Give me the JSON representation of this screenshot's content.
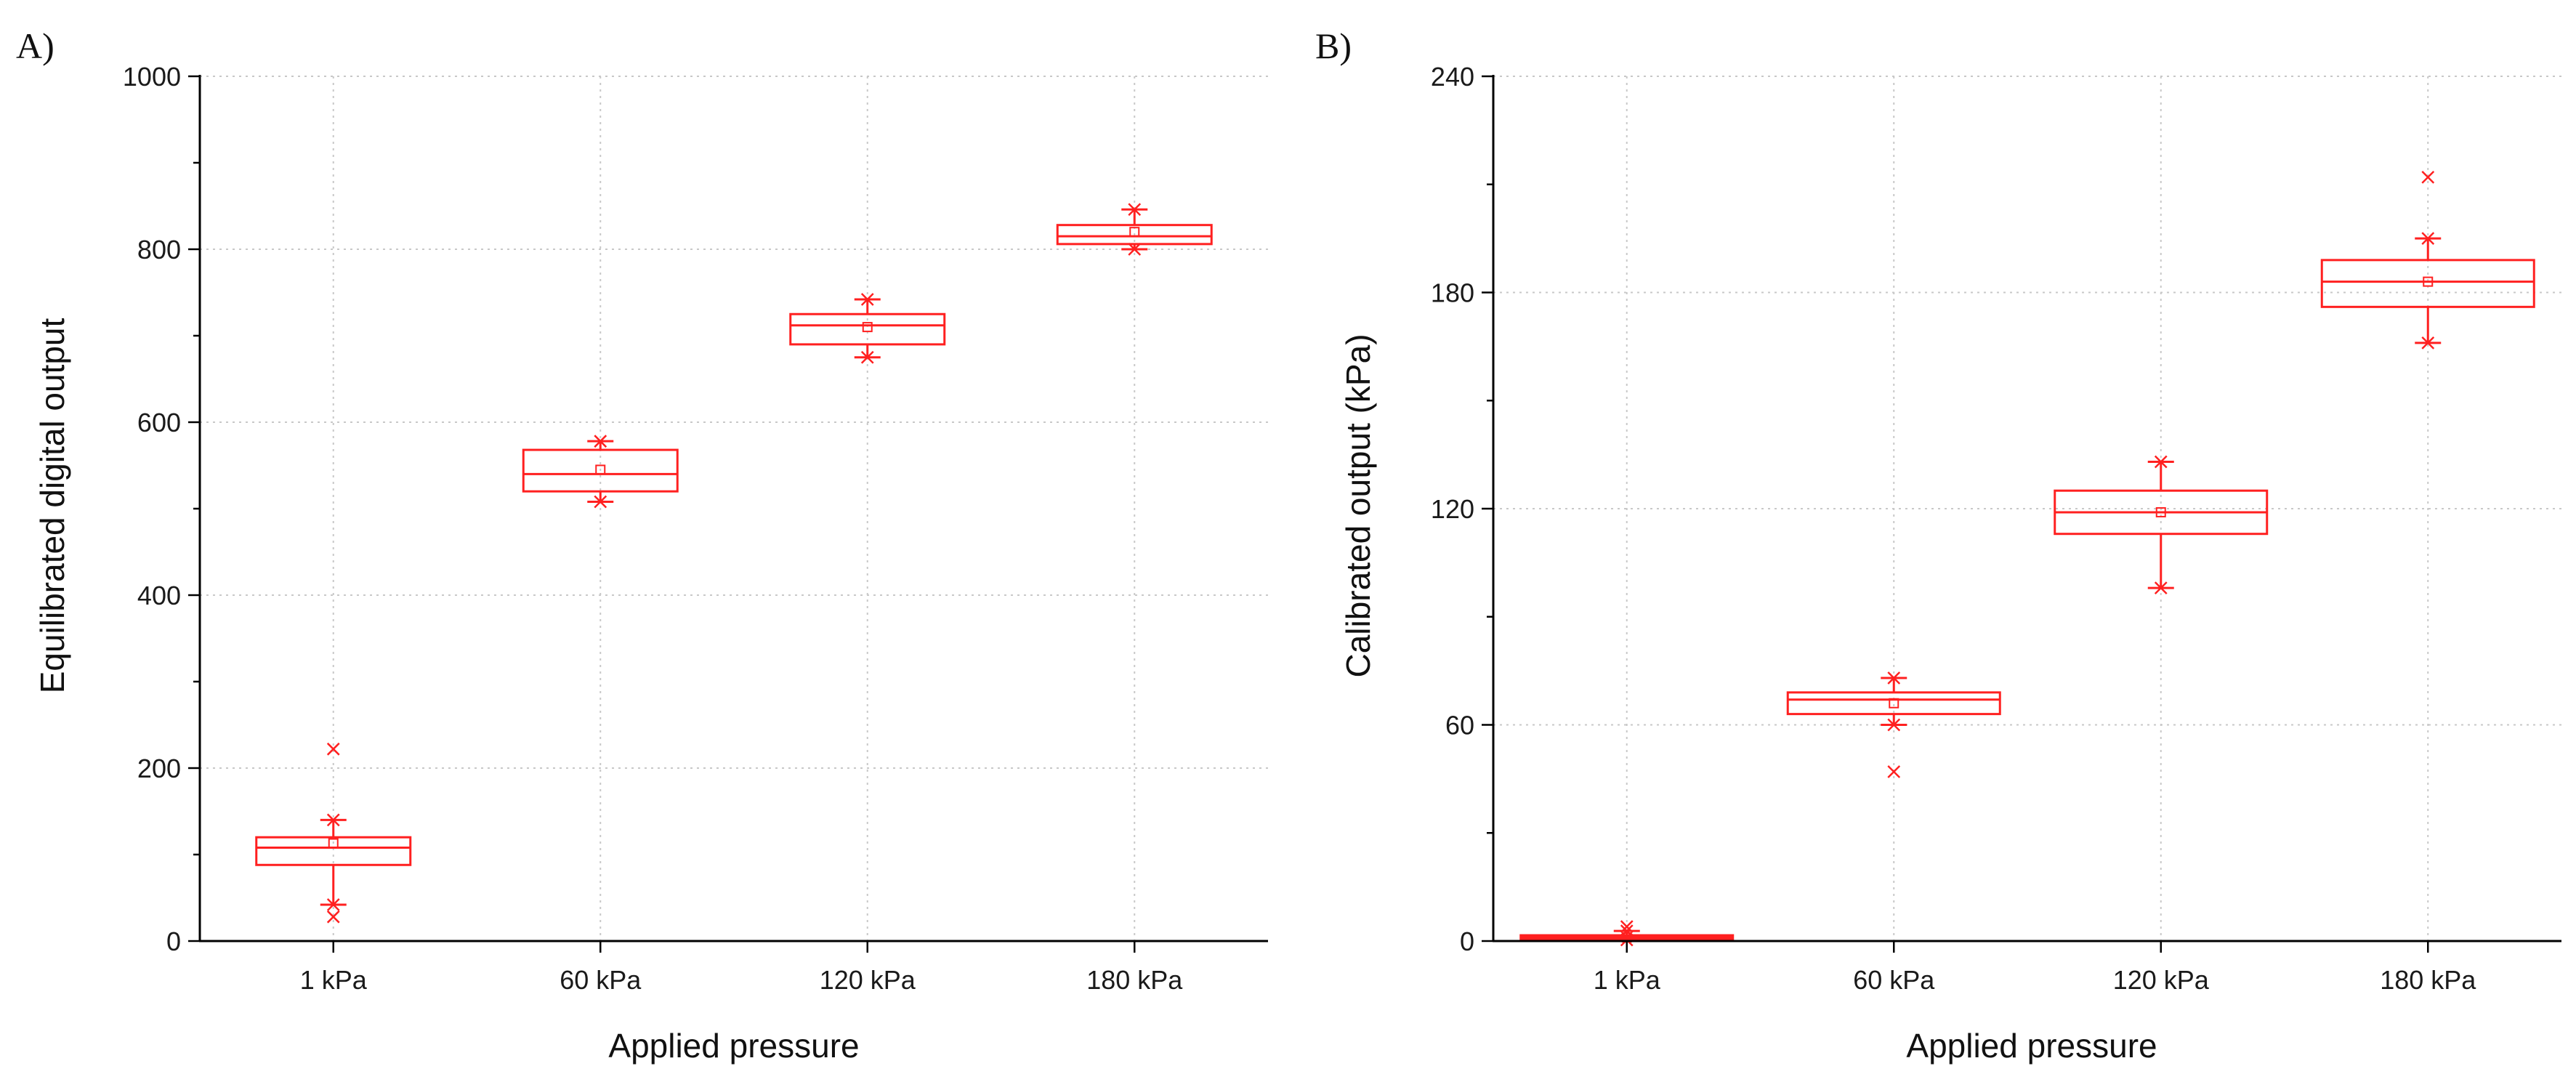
{
  "chart_data": [
    {
      "type": "box",
      "panel_label": "A)",
      "xlabel": "Applied pressure",
      "ylabel": "Equilibrated digital output",
      "categories": [
        "1 kPa",
        "60 kPa",
        "120 kPa",
        "180 kPa"
      ],
      "ylim": [
        0,
        1000
      ],
      "yticks": [
        0,
        200,
        400,
        600,
        800,
        1000
      ],
      "ytick_labels": [
        "0",
        "200",
        "400",
        "600",
        "800",
        "1000"
      ],
      "minor_ytick_step": 100,
      "grid": true,
      "series_color": "#ff2020",
      "boxes": [
        {
          "category": "1 kPa",
          "whisker_low": 42,
          "q1": 88,
          "median": 108,
          "q3": 120,
          "whisker_high": 140,
          "mean": 113,
          "outliers": [
            222,
            28
          ]
        },
        {
          "category": "60 kPa",
          "whisker_low": 508,
          "q1": 520,
          "median": 540,
          "q3": 568,
          "whisker_high": 578,
          "mean": 545,
          "outliers": []
        },
        {
          "category": "120 kPa",
          "whisker_low": 675,
          "q1": 690,
          "median": 712,
          "q3": 725,
          "whisker_high": 742,
          "mean": 710,
          "outliers": []
        },
        {
          "category": "180 kPa",
          "whisker_low": 800,
          "q1": 806,
          "median": 815,
          "q3": 828,
          "whisker_high": 846,
          "mean": 820,
          "outliers": []
        }
      ]
    },
    {
      "type": "box",
      "panel_label": "B)",
      "xlabel": "Applied pressure",
      "ylabel": "Calibrated output (kPa)",
      "categories": [
        "1 kPa",
        "60 kPa",
        "120 kPa",
        "180 kPa"
      ],
      "ylim": [
        0,
        240
      ],
      "yticks": [
        0,
        60,
        120,
        180,
        240
      ],
      "ytick_labels": [
        "0",
        "60",
        "120",
        "180",
        "240"
      ],
      "minor_ytick_step": 30,
      "grid": true,
      "series_color": "#ff2020",
      "boxes": [
        {
          "category": "1 kPa",
          "whisker_low": 0.3,
          "q1": 0.6,
          "median": 1,
          "q3": 1.6,
          "whisker_high": 2.8,
          "mean": 1,
          "outliers": [
            4
          ]
        },
        {
          "category": "60 kPa",
          "whisker_low": 60,
          "q1": 63,
          "median": 67,
          "q3": 69,
          "whisker_high": 73,
          "mean": 66,
          "outliers": [
            47
          ]
        },
        {
          "category": "120 kPa",
          "whisker_low": 98,
          "q1": 113,
          "median": 119,
          "q3": 125,
          "whisker_high": 133,
          "mean": 119,
          "outliers": []
        },
        {
          "category": "180 kPa",
          "whisker_low": 166,
          "q1": 176,
          "median": 183,
          "q3": 189,
          "whisker_high": 195,
          "mean": 183,
          "outliers": [
            212
          ]
        }
      ]
    }
  ]
}
